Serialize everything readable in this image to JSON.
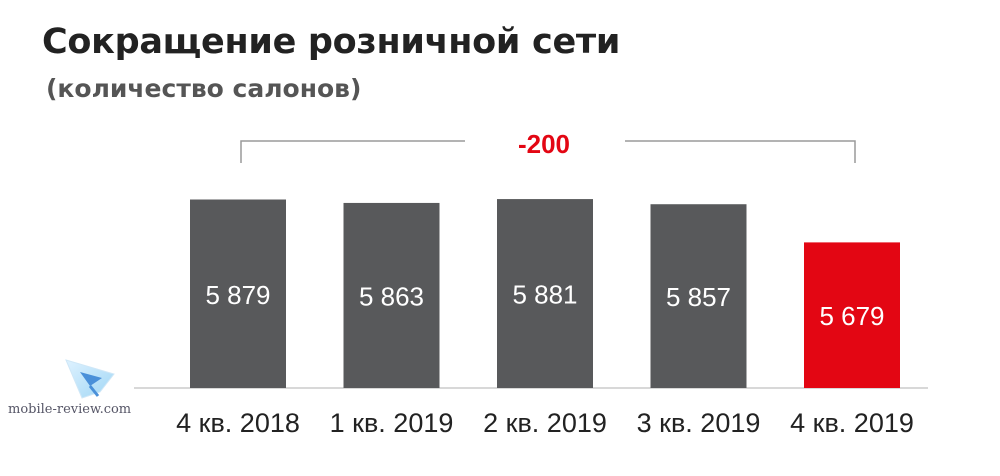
{
  "header": {
    "title": "Сокращение розничной сети",
    "subtitle": "(количество салонов)"
  },
  "annotation": {
    "change_label": "-200"
  },
  "watermark": {
    "text": "mobile-review.com"
  },
  "colors": {
    "bar": "#58595b",
    "highlight": "#e30613",
    "axis": "#cccccc",
    "bracket": "#9a9a9a",
    "label": "#ffffff",
    "category": "#222222"
  },
  "chart_data": {
    "type": "bar",
    "categories": [
      "4 кв. 2018",
      "1 кв. 2019",
      "2 кв. 2019",
      "3 кв. 2019",
      "4 кв. 2019"
    ],
    "values": [
      5879,
      5863,
      5881,
      5857,
      5679
    ],
    "value_labels": [
      "5 879",
      "5 863",
      "5 881",
      "5 857",
      "5 679"
    ],
    "highlight_index": 4,
    "title": "Сокращение розничной сети",
    "subtitle": "(количество салонов)",
    "annotation": "-200",
    "ylim": [
      5000,
      5900
    ],
    "grid": false,
    "legend": "none"
  }
}
